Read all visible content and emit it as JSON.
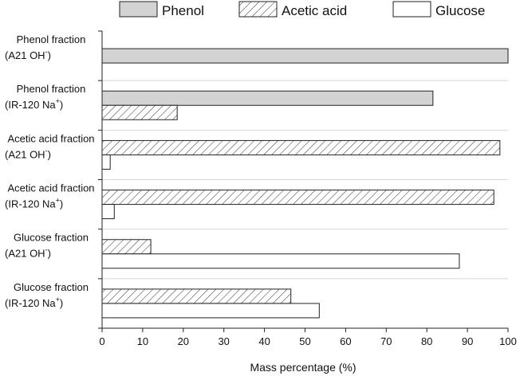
{
  "chart_data": {
    "type": "bar",
    "orientation": "horizontal",
    "xlabel": "Mass percentage (%)",
    "ylabel": "",
    "xlim": [
      0,
      100
    ],
    "x_ticks": [
      "0",
      "10",
      "20",
      "30",
      "40",
      "50",
      "60",
      "70",
      "80",
      "90",
      "100"
    ],
    "grid": "horizontal separators between groups",
    "legend_position": "top",
    "categories": [
      {
        "line1": "Phenol fraction",
        "line2_base": "(A21 OH",
        "line2_sup": "-",
        "line2_end": ")"
      },
      {
        "line1": "Phenol fraction",
        "line2_base": "(IR-120 Na",
        "line2_sup": "+",
        "line2_end": ")"
      },
      {
        "line1": "Acetic acid fraction",
        "line2_base": "(A21 OH",
        "line2_sup": "-",
        "line2_end": ")"
      },
      {
        "line1": "Acetic acid fraction",
        "line2_base": "(IR-120 Na",
        "line2_sup": "+",
        "line2_end": ")"
      },
      {
        "line1": "Glucose fraction",
        "line2_base": "(A21 OH",
        "line2_sup": "-",
        "line2_end": ")"
      },
      {
        "line1": "Glucose fraction",
        "line2_base": "(IR-120 Na",
        "line2_sup": "+",
        "line2_end": ")"
      }
    ],
    "series": [
      {
        "name": "Phenol",
        "style": "gray",
        "color": "#d3d3d3",
        "values": [
          100,
          81.5,
          0,
          0,
          0,
          0
        ]
      },
      {
        "name": "Acetic acid",
        "style": "hatch",
        "color": "#ffffff",
        "values": [
          0,
          18.5,
          98,
          96.5,
          12,
          46.5
        ]
      },
      {
        "name": "Glucose",
        "style": "white",
        "color": "#ffffff",
        "values": [
          0,
          0,
          2,
          3,
          88,
          53.5
        ]
      }
    ]
  }
}
